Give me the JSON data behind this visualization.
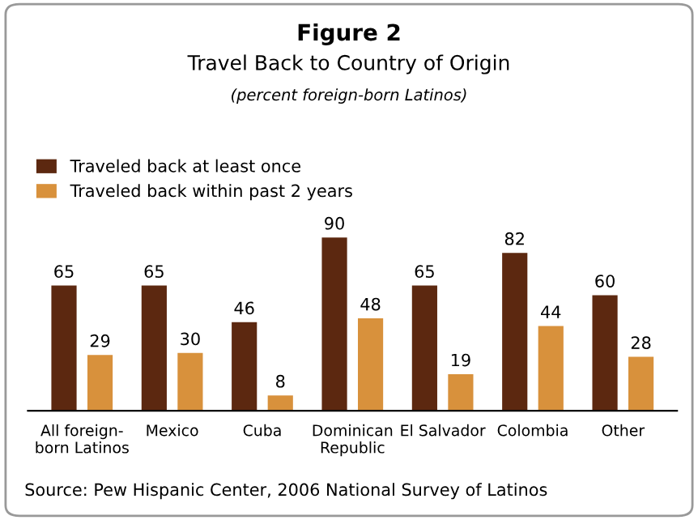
{
  "chart_data": {
    "type": "bar",
    "title": "Figure 2",
    "subtitle": "Travel Back to Country of Origin",
    "annotations": [
      "(percent foreign-born Latinos)",
      "Source: Pew Hispanic Center, 2006 National Survey of Latinos"
    ],
    "categories": [
      "All foreign-\nborn Latinos",
      "Mexico",
      "Cuba",
      "Dominican\nRepublic",
      "El Salvador",
      "Colombia",
      "Other"
    ],
    "series": [
      {
        "name": "Traveled back at least once",
        "color": "#5c2810",
        "values": [
          65,
          65,
          46,
          90,
          65,
          82,
          60
        ]
      },
      {
        "name": "Traveled back within past 2 years",
        "color": "#d8913c",
        "values": [
          29,
          30,
          8,
          48,
          19,
          44,
          28
        ]
      }
    ],
    "data_labels": true,
    "legend": "top left",
    "grid": false
  }
}
